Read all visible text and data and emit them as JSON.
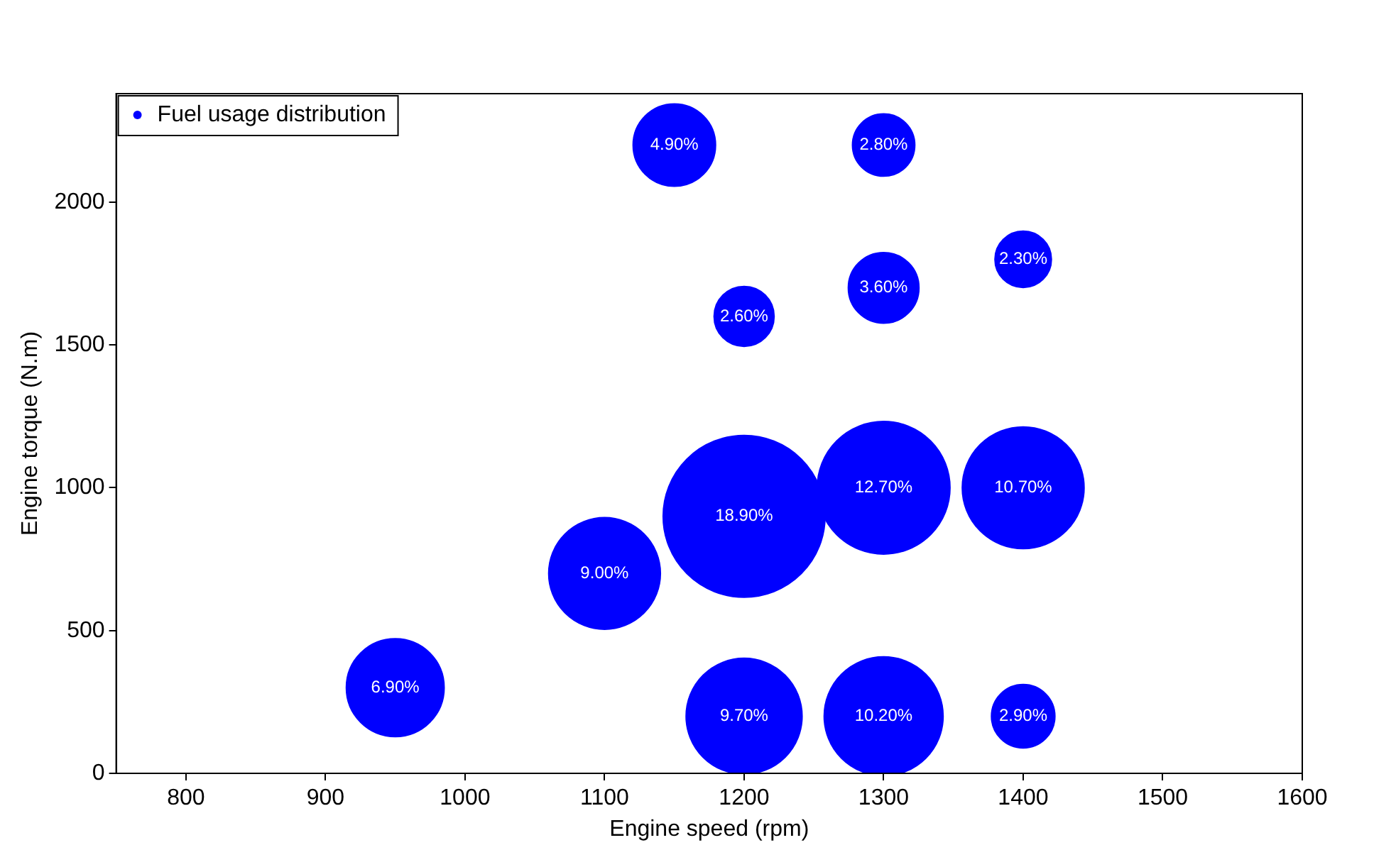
{
  "chart_data": {
    "type": "bubble",
    "xlabel": "Engine speed (rpm)",
    "ylabel": "Engine torque (N.m)",
    "xlim": [
      750,
      1600
    ],
    "xticks": [
      800,
      900,
      1000,
      1100,
      1200,
      1300,
      1400,
      1500,
      1600
    ],
    "ylim": [
      0,
      2380
    ],
    "yticks": [
      0,
      500,
      1000,
      1500,
      2000
    ],
    "grid": false,
    "legend": "top left",
    "series": [
      {
        "name": "Fuel usage distribution",
        "color": "#0000ff",
        "x": [
          1150,
          1300,
          1400,
          1200,
          1300,
          1200,
          1300,
          1400,
          1100,
          950,
          1200,
          1300,
          1400
        ],
        "values": [
          2200,
          2200,
          1800,
          1600,
          1700,
          900,
          1000,
          1000,
          700,
          300,
          200,
          200,
          200
        ],
        "sizes": [
          4.9,
          2.8,
          2.3,
          2.6,
          3.6,
          18.9,
          12.7,
          10.7,
          9.0,
          6.9,
          9.7,
          10.2,
          2.9
        ],
        "value_labels": [
          "4.90%",
          "2.80%",
          "2.30%",
          "2.60%",
          "3.60%",
          "18.90%",
          "12.70%",
          "10.70%",
          "9.00%",
          "6.90%",
          "9.70%",
          "10.20%",
          "2.90%"
        ]
      }
    ]
  }
}
